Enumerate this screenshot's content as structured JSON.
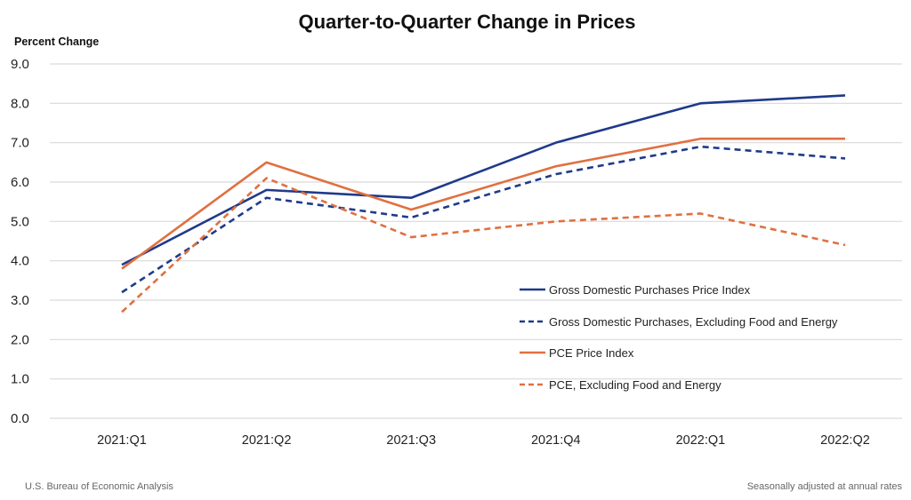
{
  "chart_data": {
    "type": "line",
    "title": "Quarter-to-Quarter Change in Prices",
    "ylabel": "Percent Change",
    "xlabel": "",
    "ylim": [
      0,
      9
    ],
    "yticks": [
      "0.0",
      "1.0",
      "2.0",
      "3.0",
      "4.0",
      "5.0",
      "6.0",
      "7.0",
      "8.0",
      "9.0"
    ],
    "grid": true,
    "legend_position": "bottom-right",
    "categories": [
      "2021:Q1",
      "2021:Q2",
      "2021:Q3",
      "2021:Q4",
      "2022:Q1",
      "2022:Q2"
    ],
    "series": [
      {
        "name": "Gross Domestic Purchases Price Index",
        "color": "#1f3a8a",
        "dashed": false,
        "values": [
          3.9,
          5.8,
          5.6,
          7.0,
          8.0,
          8.2
        ]
      },
      {
        "name": "Gross Domestic Purchases, Excluding Food and Energy",
        "color": "#1f3a8a",
        "dashed": true,
        "values": [
          3.2,
          5.6,
          5.1,
          6.2,
          6.9,
          6.6
        ]
      },
      {
        "name": "PCE Price Index",
        "color": "#e07040",
        "dashed": false,
        "values": [
          3.8,
          6.5,
          5.3,
          6.4,
          7.1,
          7.1
        ]
      },
      {
        "name": "PCE, Excluding Food and Energy",
        "color": "#e07040",
        "dashed": true,
        "values": [
          2.7,
          6.1,
          4.6,
          5.0,
          5.2,
          4.4
        ]
      }
    ],
    "footer_left": "U.S. Bureau of Economic Analysis",
    "footer_right": "Seasonally adjusted at annual rates"
  }
}
